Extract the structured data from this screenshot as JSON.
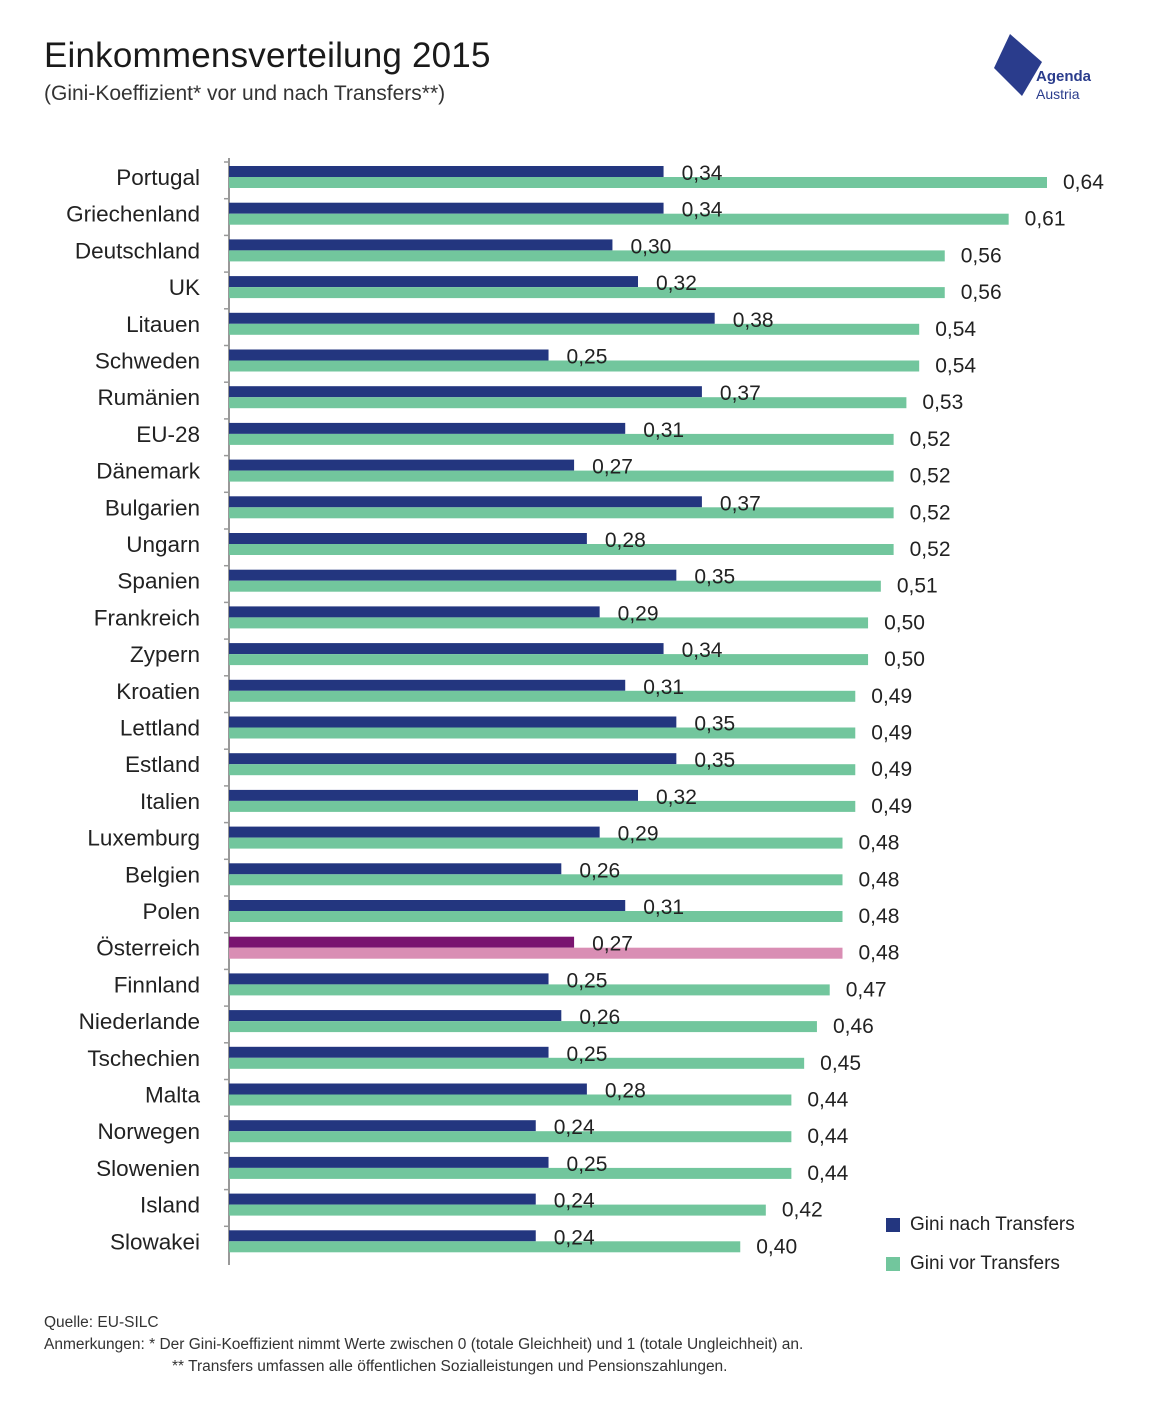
{
  "header": {
    "title": "Einkommensverteilung 2015",
    "subtitle": "(Gini-Koeffizient* vor und nach Transfers**)"
  },
  "logo": {
    "line1": "Agenda",
    "line2": "Austria"
  },
  "colors": {
    "nach": "#23367f",
    "vor": "#72c69d",
    "highlight_nach": "#7a1470",
    "highlight_vor": "#d98eb4",
    "logo": "#2a3c8c"
  },
  "legend": {
    "nach_label": "Gini nach Transfers",
    "vor_label": "Gini vor Transfers"
  },
  "footer": {
    "source": "Quelle: EU-SILC",
    "note1": "Anmerkungen: * Der Gini-Koeffizient nimmt Werte zwischen 0 (totale Gleichheit) und 1 (totale Ungleichheit) an.",
    "note2": "** Transfers umfassen alle öffentlichen Sozialleistungen und Pensionszahlungen."
  },
  "chart_data": {
    "type": "bar",
    "orientation": "horizontal",
    "title": "Einkommensverteilung 2015",
    "xlim": [
      0,
      0.7
    ],
    "highlight": "Österreich",
    "categories": [
      "Portugal",
      "Griechenland",
      "Deutschland",
      "UK",
      "Litauen",
      "Schweden",
      "Rumänien",
      "EU-28",
      "Dänemark",
      "Bulgarien",
      "Ungarn",
      "Spanien",
      "Frankreich",
      "Zypern",
      "Kroatien",
      "Lettland",
      "Estland",
      "Italien",
      "Luxemburg",
      "Belgien",
      "Polen",
      "Österreich",
      "Finnland",
      "Niederlande",
      "Tschechien",
      "Malta",
      "Norwegen",
      "Slowenien",
      "Island",
      "Slowakei"
    ],
    "series": [
      {
        "name": "Gini nach Transfers",
        "values": [
          0.34,
          0.34,
          0.3,
          0.32,
          0.38,
          0.25,
          0.37,
          0.31,
          0.27,
          0.37,
          0.28,
          0.35,
          0.29,
          0.34,
          0.31,
          0.35,
          0.35,
          0.32,
          0.29,
          0.26,
          0.31,
          0.27,
          0.25,
          0.26,
          0.25,
          0.28,
          0.24,
          0.25,
          0.24,
          0.24
        ],
        "labels": [
          "0,34",
          "0,34",
          "0,30",
          "0,32",
          "0,38",
          "0,25",
          "0,37",
          "0,31",
          "0,27",
          "0,37",
          "0,28",
          "0,35",
          "0,29",
          "0,34",
          "0,31",
          "0,35",
          "0,35",
          "0,32",
          "0,29",
          "0,26",
          "0,31",
          "0,27",
          "0,25",
          "0,26",
          "0,25",
          "0,28",
          "0,24",
          "0,25",
          "0,24",
          "0,24"
        ]
      },
      {
        "name": "Gini vor Transfers",
        "values": [
          0.64,
          0.61,
          0.56,
          0.56,
          0.54,
          0.54,
          0.53,
          0.52,
          0.52,
          0.52,
          0.52,
          0.51,
          0.5,
          0.5,
          0.49,
          0.49,
          0.49,
          0.49,
          0.48,
          0.48,
          0.48,
          0.48,
          0.47,
          0.46,
          0.45,
          0.44,
          0.44,
          0.44,
          0.42,
          0.4
        ],
        "labels": [
          "0,64",
          "0,61",
          "0,56",
          "0,56",
          "0,54",
          "0,54",
          "0,53",
          "0,52",
          "0,52",
          "0,52",
          "0,52",
          "0,51",
          "0,50",
          "0,50",
          "0,49",
          "0,49",
          "0,49",
          "0,49",
          "0,48",
          "0,48",
          "0,48",
          "0,48",
          "0,47",
          "0,46",
          "0,45",
          "0,44",
          "0,44",
          "0,44",
          "0,42",
          "0,40"
        ]
      }
    ]
  }
}
